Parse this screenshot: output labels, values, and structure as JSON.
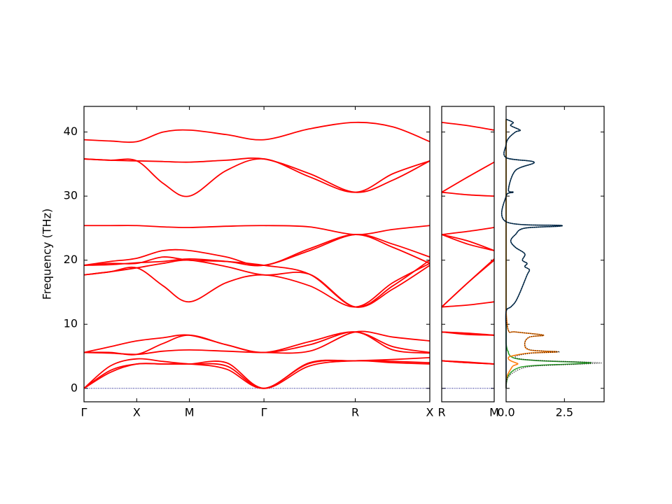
{
  "chart_data": [
    {
      "type": "line",
      "ylabel": "Frequency (THz)",
      "color": "#ff0000",
      "zero_line": true,
      "zero_color": "#000080",
      "xlim": [
        0,
        3.28
      ],
      "ylim": [
        -2.1,
        44
      ],
      "xticks": [
        {
          "value": 0,
          "label": "Γ"
        },
        {
          "value": 0.5,
          "label": "X"
        },
        {
          "value": 1.0,
          "label": "M"
        },
        {
          "value": 1.707,
          "label": "Γ"
        },
        {
          "value": 2.573,
          "label": "R"
        },
        {
          "value": 3.28,
          "label": "X"
        }
      ],
      "yticks": [
        0,
        10,
        20,
        30,
        40
      ],
      "ytick_labels": true,
      "x": [
        0,
        0.25,
        0.5,
        0.75,
        1.0,
        1.35,
        1.707,
        2.14,
        2.573,
        2.93,
        3.28
      ],
      "series": [
        {
          "values": [
            0,
            2.5,
            3.8,
            3.8,
            3.8,
            4.0,
            0,
            3.5,
            4.3,
            4.0,
            3.8
          ]
        },
        {
          "values": [
            0,
            2.8,
            3.8,
            3.8,
            3.8,
            3.0,
            0,
            3.9,
            4.3,
            4.2,
            4.0
          ]
        },
        {
          "values": [
            0,
            3.5,
            4.6,
            4.2,
            3.8,
            3.5,
            0,
            4.0,
            4.3,
            4.5,
            4.8
          ]
        },
        {
          "values": [
            5.6,
            5.5,
            5.3,
            5.8,
            6.0,
            5.8,
            5.6,
            5.8,
            8.8,
            8.0,
            7.4
          ]
        },
        {
          "values": [
            5.6,
            6.5,
            7.4,
            7.9,
            8.3,
            6.8,
            5.6,
            7.3,
            8.8,
            6.5,
            5.6
          ]
        },
        {
          "values": [
            5.6,
            5.6,
            5.3,
            7.0,
            8.3,
            6.8,
            5.6,
            6.8,
            8.8,
            6.0,
            5.5
          ]
        },
        {
          "values": [
            17.7,
            18.2,
            18.8,
            16.0,
            13.5,
            16.5,
            17.7,
            16.0,
            12.7,
            16.5,
            19.5
          ]
        },
        {
          "values": [
            17.7,
            18.2,
            18.8,
            19.5,
            20.0,
            19.0,
            17.7,
            17.8,
            12.7,
            15.5,
            19.2
          ]
        },
        {
          "values": [
            19.2,
            19.3,
            19.6,
            19.8,
            20.2,
            19.8,
            19.2,
            17.8,
            12.7,
            16.0,
            20.0
          ]
        },
        {
          "values": [
            19.2,
            19.8,
            20.3,
            21.5,
            21.5,
            20.5,
            19.2,
            21.8,
            24.0,
            22.0,
            19.5
          ]
        },
        {
          "values": [
            19.2,
            19.5,
            19.5,
            20.5,
            20.0,
            19.8,
            19.2,
            21.5,
            24.0,
            22.5,
            20.5
          ]
        },
        {
          "values": [
            25.4,
            25.4,
            25.4,
            25.2,
            25.1,
            25.3,
            25.4,
            25.2,
            24.0,
            24.8,
            25.4
          ]
        },
        {
          "values": [
            35.8,
            35.6,
            35.5,
            32.0,
            30.0,
            34.0,
            35.8,
            33.0,
            30.6,
            33.5,
            35.5
          ]
        },
        {
          "values": [
            35.8,
            35.6,
            35.5,
            35.4,
            35.3,
            35.6,
            35.8,
            33.5,
            30.6,
            32.5,
            35.5
          ]
        },
        {
          "values": [
            38.8,
            38.6,
            38.5,
            40.0,
            40.3,
            39.6,
            38.8,
            40.5,
            41.5,
            40.8,
            38.5
          ]
        }
      ]
    },
    {
      "type": "line",
      "color": "#ff0000",
      "zero_line": true,
      "zero_color": "#000080",
      "xlim": [
        0,
        0.5
      ],
      "ylim": [
        -2.1,
        44
      ],
      "xticks": [
        {
          "value": 0,
          "label": "R"
        },
        {
          "value": 0.5,
          "label": "M"
        }
      ],
      "yticks": [
        0,
        10,
        20,
        30,
        40
      ],
      "ytick_labels": false,
      "x": [
        0,
        0.25,
        0.5
      ],
      "series": [
        {
          "values": [
            4.3,
            4.0,
            3.8
          ]
        },
        {
          "values": [
            4.3,
            4.0,
            3.8
          ]
        },
        {
          "values": [
            4.3,
            4.1,
            3.8
          ]
        },
        {
          "values": [
            8.8,
            8.5,
            8.3
          ]
        },
        {
          "values": [
            8.8,
            8.6,
            8.3
          ]
        },
        {
          "values": [
            8.8,
            8.4,
            8.3
          ]
        },
        {
          "values": [
            12.7,
            13.0,
            13.5
          ]
        },
        {
          "values": [
            12.7,
            16.5,
            20.0
          ]
        },
        {
          "values": [
            12.7,
            16.5,
            20.2
          ]
        },
        {
          "values": [
            24.0,
            23.0,
            21.5
          ]
        },
        {
          "values": [
            24.0,
            24.5,
            25.1
          ]
        },
        {
          "values": [
            24.0,
            22.5,
            21.5
          ]
        },
        {
          "values": [
            30.6,
            33.0,
            35.3
          ]
        },
        {
          "values": [
            30.6,
            30.2,
            30.0
          ]
        },
        {
          "values": [
            41.5,
            41.0,
            40.3
          ]
        }
      ]
    },
    {
      "type": "dos",
      "xlim": [
        0,
        4.2
      ],
      "ylim": [
        -2.1,
        44
      ],
      "xticks": [
        {
          "value": 0,
          "label": "0.0"
        },
        {
          "value": 2.5,
          "label": "2.5"
        }
      ],
      "yticks": [
        0,
        10,
        20,
        30,
        40
      ],
      "ytick_labels": false,
      "y": [
        0,
        1,
        2,
        3,
        3.5,
        3.8,
        4.0,
        4.3,
        4.6,
        5,
        5.5,
        5.7,
        6,
        7,
        8,
        8.3,
        8.8,
        9,
        12,
        12.7,
        13.5,
        15,
        17.7,
        18.5,
        19,
        19.5,
        20,
        21,
        22,
        23,
        24,
        25,
        25.4,
        26,
        30,
        30.6,
        31,
        34,
        35.3,
        36,
        38,
        39,
        40,
        40.3,
        41,
        41.5,
        42
      ],
      "series": [
        {
          "color": "#2ca02c",
          "values": [
            0,
            0.02,
            0.1,
            0.4,
            1.0,
            2.8,
            3.6,
            1.5,
            0.5,
            0.2,
            0.1,
            0.1,
            0.05,
            0,
            0,
            0,
            0,
            0,
            0,
            0,
            0,
            0,
            0,
            0,
            0,
            0,
            0,
            0,
            0,
            0,
            0,
            0,
            0,
            0,
            0,
            0,
            0,
            0,
            0,
            0,
            0,
            0,
            0,
            0,
            0,
            0,
            0
          ]
        },
        {
          "color": "#ff7f0e",
          "values": [
            0,
            0,
            0.05,
            0.2,
            0.3,
            0.5,
            0.4,
            0.2,
            0.1,
            0.2,
            1.0,
            2.2,
            1.0,
            0.8,
            1.0,
            1.6,
            0.4,
            0.1,
            0,
            0,
            0,
            0,
            0,
            0,
            0,
            0,
            0,
            0,
            0,
            0,
            0,
            0,
            0,
            0,
            0,
            0,
            0,
            0,
            0,
            0,
            0,
            0,
            0,
            0,
            0,
            0,
            0
          ]
        },
        {
          "color": "#0b3d66",
          "values": [
            0,
            0,
            0,
            0,
            0,
            0,
            0,
            0,
            0,
            0,
            0,
            0,
            0,
            0,
            0,
            0,
            0,
            0,
            0,
            0.2,
            0.4,
            0.6,
            0.9,
            1.0,
            0.8,
            0.9,
            0.7,
            0.8,
            0.4,
            0.2,
            0.4,
            0.8,
            2.4,
            0,
            0,
            0.3,
            0.1,
            0.4,
            1.2,
            0,
            0,
            0.1,
            0.4,
            0.6,
            0.2,
            0.3,
            0
          ]
        },
        {
          "color": "#000000",
          "dotted": true,
          "values": [
            0,
            0.02,
            0.15,
            0.6,
            1.3,
            3.3,
            4.0,
            1.7,
            0.6,
            0.4,
            1.1,
            2.3,
            1.05,
            0.8,
            1.0,
            1.6,
            0.4,
            0.1,
            0,
            0.2,
            0.4,
            0.6,
            0.9,
            1.0,
            0.8,
            0.9,
            0.7,
            0.8,
            0.4,
            0.2,
            0.4,
            0.8,
            2.4,
            0,
            0,
            0.3,
            0.1,
            0.4,
            1.2,
            0,
            0,
            0.1,
            0.4,
            0.6,
            0.2,
            0.3,
            0
          ]
        }
      ]
    }
  ]
}
